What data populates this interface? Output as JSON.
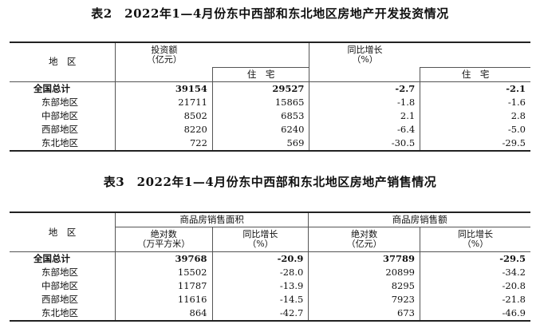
{
  "table2": {
    "title": "表2　2022年1—4月份东中西部和东北地区房地产开发投资情况",
    "headers": {
      "region": "地　区",
      "investment": "投资额",
      "investment_unit": "（亿元）",
      "residential": "住　宅",
      "yoy": "同比增长",
      "yoy_unit": "（%）",
      "yoy_residential": "住　宅"
    },
    "rows": [
      {
        "region": "全国总计",
        "investment": "39154",
        "residential": "29527",
        "yoy": "-2.7",
        "yoy_residential": "-2.1"
      },
      {
        "region": "东部地区",
        "investment": "21711",
        "residential": "15865",
        "yoy": "-1.8",
        "yoy_residential": "-1.6"
      },
      {
        "region": "中部地区",
        "investment": "8502",
        "residential": "6853",
        "yoy": "2.1",
        "yoy_residential": "2.8"
      },
      {
        "region": "西部地区",
        "investment": "8220",
        "residential": "6240",
        "yoy": "-6.4",
        "yoy_residential": "-5.0"
      },
      {
        "region": "东北地区",
        "investment": "722",
        "residential": "569",
        "yoy": "-30.5",
        "yoy_residential": "-29.5"
      }
    ]
  },
  "table3": {
    "title": "表3　2022年1—4月份东中西部和东北地区房地产销售情况",
    "headers": {
      "region": "地　区",
      "area_group": "商品房销售面积",
      "sales_group": "商品房销售额",
      "area_abs": "绝对数",
      "area_abs_unit": "（万平方米）",
      "area_yoy": "同比增长",
      "area_yoy_unit": "（%）",
      "sales_abs": "绝对数",
      "sales_abs_unit": "（亿元）",
      "sales_yoy": "同比增长",
      "sales_yoy_unit": "（%）"
    },
    "rows": [
      {
        "region": "全国总计",
        "area": "39768",
        "area_yoy": "-20.9",
        "sales": "37789",
        "sales_yoy": "-29.5"
      },
      {
        "region": "东部地区",
        "area": "15502",
        "area_yoy": "-28.0",
        "sales": "20899",
        "sales_yoy": "-34.2"
      },
      {
        "region": "中部地区",
        "area": "11787",
        "area_yoy": "-13.9",
        "sales": "8295",
        "sales_yoy": "-20.8"
      },
      {
        "region": "西部地区",
        "area": "11616",
        "area_yoy": "-14.5",
        "sales": "7923",
        "sales_yoy": "-21.8"
      },
      {
        "region": "东北地区",
        "area": "864",
        "area_yoy": "-42.7",
        "sales": "673",
        "sales_yoy": "-46.9"
      }
    ]
  }
}
